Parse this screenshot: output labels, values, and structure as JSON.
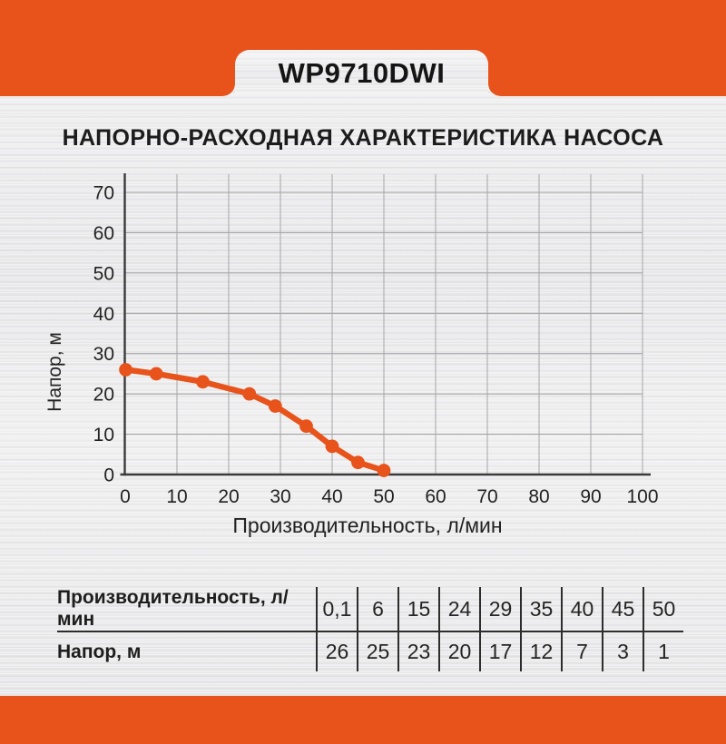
{
  "badge": {
    "model": "WP9710DWI"
  },
  "title": "НАПОРНО-РАСХОДНАЯ ХАРАКТЕРИСТИКА НАСОСА",
  "colors": {
    "accent_orange": "#E7531B",
    "axis": "#3b3b3b",
    "grid": "#a6a6a8",
    "text": "#222222"
  },
  "chart_data": {
    "type": "line",
    "title": "",
    "xlabel": "Производительность, л/мин",
    "ylabel": "Напор, м",
    "x": [
      0.1,
      6,
      15,
      24,
      29,
      35,
      40,
      45,
      50
    ],
    "y": [
      26,
      25,
      23,
      20,
      17,
      12,
      7,
      3,
      1
    ],
    "xlim": [
      0,
      100
    ],
    "ylim": [
      0,
      74.5
    ],
    "xticks": [
      0,
      10,
      20,
      30,
      40,
      50,
      60,
      70,
      80,
      90,
      100
    ],
    "yticks": [
      0,
      10,
      20,
      30,
      40,
      50,
      60,
      70
    ],
    "grid": true,
    "legend": false,
    "line_color": "#E7531B",
    "marker": "circle"
  },
  "table": {
    "rows": [
      {
        "label": "Производительность, л/мин",
        "values": [
          "0,1",
          "6",
          "15",
          "24",
          "29",
          "35",
          "40",
          "45",
          "50"
        ]
      },
      {
        "label": "Напор, м",
        "values": [
          "26",
          "25",
          "23",
          "20",
          "17",
          "12",
          "7",
          "3",
          "1"
        ]
      }
    ]
  }
}
